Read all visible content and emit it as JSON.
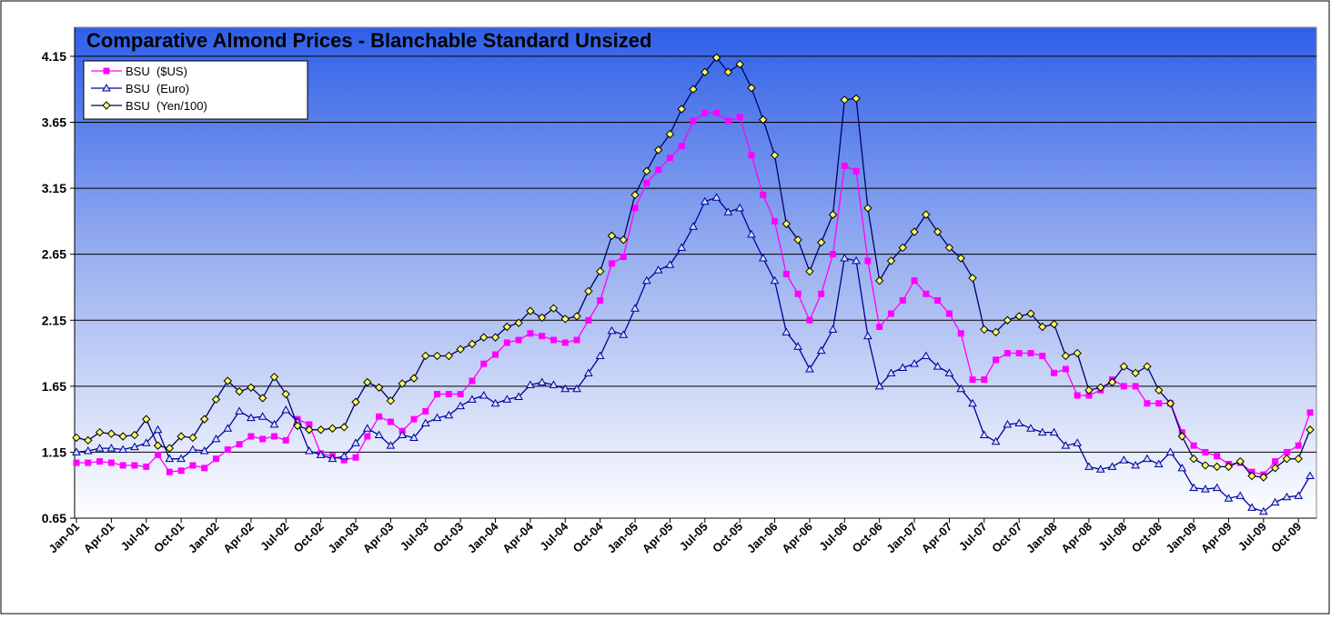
{
  "chart_data": {
    "type": "line",
    "title": "Comparative Almond Prices - Blanchable Standard Unsized",
    "categories": [
      "Jan-01",
      null,
      null,
      "Apr-01",
      null,
      null,
      "Jul-01",
      null,
      null,
      "Oct-01",
      null,
      null,
      "Jan-02",
      null,
      null,
      "Apr-02",
      null,
      null,
      "Jul-02",
      null,
      null,
      "Oct-02",
      null,
      null,
      "Jan-03",
      null,
      null,
      "Apr-03",
      null,
      null,
      "Jul-03",
      null,
      null,
      "Oct-03",
      null,
      null,
      "Jan-04",
      null,
      null,
      "Apr-04",
      null,
      null,
      "Jul-04",
      null,
      null,
      "Oct-04",
      null,
      null,
      "Jan-05",
      null,
      null,
      "Apr-05",
      null,
      null,
      "Jul-05",
      null,
      null,
      "Oct-05",
      null,
      null,
      "Jan-06",
      null,
      null,
      "Apr-06",
      null,
      null,
      "Jul-06",
      null,
      null,
      "Oct-06",
      null,
      null,
      "Jan-07",
      null,
      null,
      "Apr-07",
      null,
      null,
      "Jul-07",
      null,
      null,
      "Oct-07",
      null,
      null,
      "Jan-08",
      null,
      null,
      "Apr-08",
      null,
      null,
      "Jul-08",
      null,
      null,
      "Oct-08",
      null,
      null,
      "Jan-09",
      null,
      null,
      "Apr-09",
      null,
      null,
      "Jul-09",
      null,
      null,
      "Oct-09",
      null
    ],
    "series": [
      {
        "name": "BSU  ($US)",
        "color": "#ff00ff",
        "marker": "square",
        "values": [
          1.07,
          1.07,
          1.08,
          1.07,
          1.05,
          1.05,
          1.04,
          1.13,
          1.0,
          1.01,
          1.05,
          1.03,
          1.1,
          1.17,
          1.21,
          1.27,
          1.25,
          1.27,
          1.24,
          1.4,
          1.36,
          1.14,
          1.12,
          1.09,
          1.11,
          1.27,
          1.42,
          1.38,
          1.31,
          1.4,
          1.46,
          1.59,
          1.59,
          1.59,
          1.69,
          1.82,
          1.89,
          1.98,
          2.0,
          2.05,
          2.03,
          2.0,
          1.98,
          2.0,
          2.15,
          2.3,
          2.58,
          2.63,
          3.0,
          3.19,
          3.29,
          3.38,
          3.47,
          3.66,
          3.72,
          3.72,
          3.66,
          3.69,
          3.4,
          3.1,
          2.9,
          2.5,
          2.35,
          2.15,
          2.35,
          2.65,
          3.32,
          3.28,
          2.6,
          2.1,
          2.2,
          2.3,
          2.45,
          2.35,
          2.3,
          2.2,
          2.05,
          1.7,
          1.7,
          1.85,
          1.9,
          1.9,
          1.9,
          1.88,
          1.75,
          1.78,
          1.58,
          1.58,
          1.62,
          1.7,
          1.65,
          1.65,
          1.52,
          1.52,
          1.52,
          1.3,
          1.2,
          1.15,
          1.12,
          1.06,
          1.07,
          1.0,
          0.98,
          1.08,
          1.15,
          1.2,
          1.45
        ]
      },
      {
        "name": "BSU  (Euro)",
        "color": "#000099",
        "marker": "triangle",
        "values": [
          1.15,
          1.16,
          1.18,
          1.18,
          1.17,
          1.19,
          1.22,
          1.32,
          1.1,
          1.1,
          1.17,
          1.16,
          1.25,
          1.33,
          1.46,
          1.41,
          1.42,
          1.36,
          1.47,
          1.38,
          1.16,
          1.13,
          1.1,
          1.12,
          1.22,
          1.33,
          1.28,
          1.2,
          1.28,
          1.26,
          1.37,
          1.41,
          1.43,
          1.5,
          1.55,
          1.58,
          1.52,
          1.55,
          1.57,
          1.66,
          1.68,
          1.66,
          1.63,
          1.63,
          1.75,
          1.88,
          2.07,
          2.04,
          2.24,
          2.45,
          2.53,
          2.57,
          2.7,
          2.86,
          3.05,
          3.08,
          2.97,
          3.0,
          2.8,
          2.62,
          2.45,
          2.06,
          1.95,
          1.78,
          1.92,
          2.08,
          2.62,
          2.6,
          2.03,
          1.65,
          1.75,
          1.79,
          1.82,
          1.88,
          1.8,
          1.75,
          1.63,
          1.52,
          1.28,
          1.23,
          1.36,
          1.37,
          1.33,
          1.3,
          1.3,
          1.2,
          1.22,
          1.04,
          1.02,
          1.04,
          1.09,
          1.05,
          1.1,
          1.06,
          1.15,
          1.03,
          0.88,
          0.87,
          0.88,
          0.8,
          0.82,
          0.73,
          0.7,
          0.77,
          0.81,
          0.82,
          0.97
        ]
      },
      {
        "name": "BSU  (Yen/100)",
        "color": "#000066",
        "marker": "diamond",
        "values": [
          1.26,
          1.24,
          1.3,
          1.29,
          1.27,
          1.28,
          1.4,
          1.2,
          1.18,
          1.27,
          1.26,
          1.4,
          1.55,
          1.69,
          1.61,
          1.64,
          1.56,
          1.72,
          1.59,
          1.35,
          1.32,
          1.32,
          1.33,
          1.34,
          1.53,
          1.68,
          1.64,
          1.54,
          1.67,
          1.71,
          1.88,
          1.88,
          1.88,
          1.93,
          1.97,
          2.02,
          2.02,
          2.1,
          2.13,
          2.22,
          2.17,
          2.24,
          2.16,
          2.18,
          2.37,
          2.52,
          2.79,
          2.76,
          3.1,
          3.28,
          3.44,
          3.56,
          3.75,
          3.9,
          4.03,
          4.14,
          4.03,
          4.09,
          3.91,
          3.67,
          3.4,
          2.88,
          2.76,
          2.52,
          2.74,
          2.95,
          3.82,
          3.83,
          3.0,
          2.45,
          2.6,
          2.7,
          2.82,
          2.95,
          2.82,
          2.7,
          2.62,
          2.47,
          2.08,
          2.06,
          2.15,
          2.18,
          2.2,
          2.1,
          2.12,
          1.88,
          1.9,
          1.62,
          1.64,
          1.68,
          1.8,
          1.75,
          1.8,
          1.62,
          1.52,
          1.27,
          1.1,
          1.05,
          1.04,
          1.04,
          1.08,
          0.97,
          0.96,
          1.03,
          1.1,
          1.1,
          1.32
        ]
      }
    ],
    "ylim": [
      0.65,
      4.37
    ],
    "yticks": [
      0.65,
      1.15,
      1.65,
      2.15,
      2.65,
      3.15,
      3.65,
      4.15
    ],
    "grid": true,
    "legend": "top-left"
  }
}
